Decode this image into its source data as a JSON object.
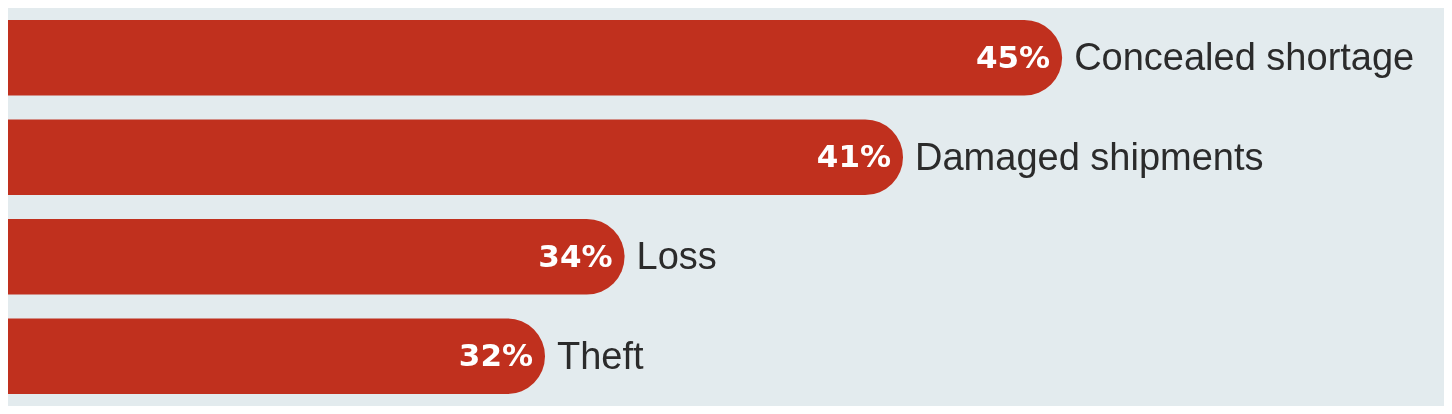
{
  "chart_data": {
    "type": "bar",
    "orientation": "horizontal",
    "categories": [
      "Concealed shortage",
      "Damaged shipments",
      "Loss",
      "Theft"
    ],
    "values": [
      45,
      41,
      34,
      32
    ],
    "value_labels": [
      "45%",
      "41%",
      "34%",
      "32%"
    ],
    "color": "#c0301e",
    "xlim": [
      18.5,
      54.6
    ],
    "tick_labels": false
  }
}
